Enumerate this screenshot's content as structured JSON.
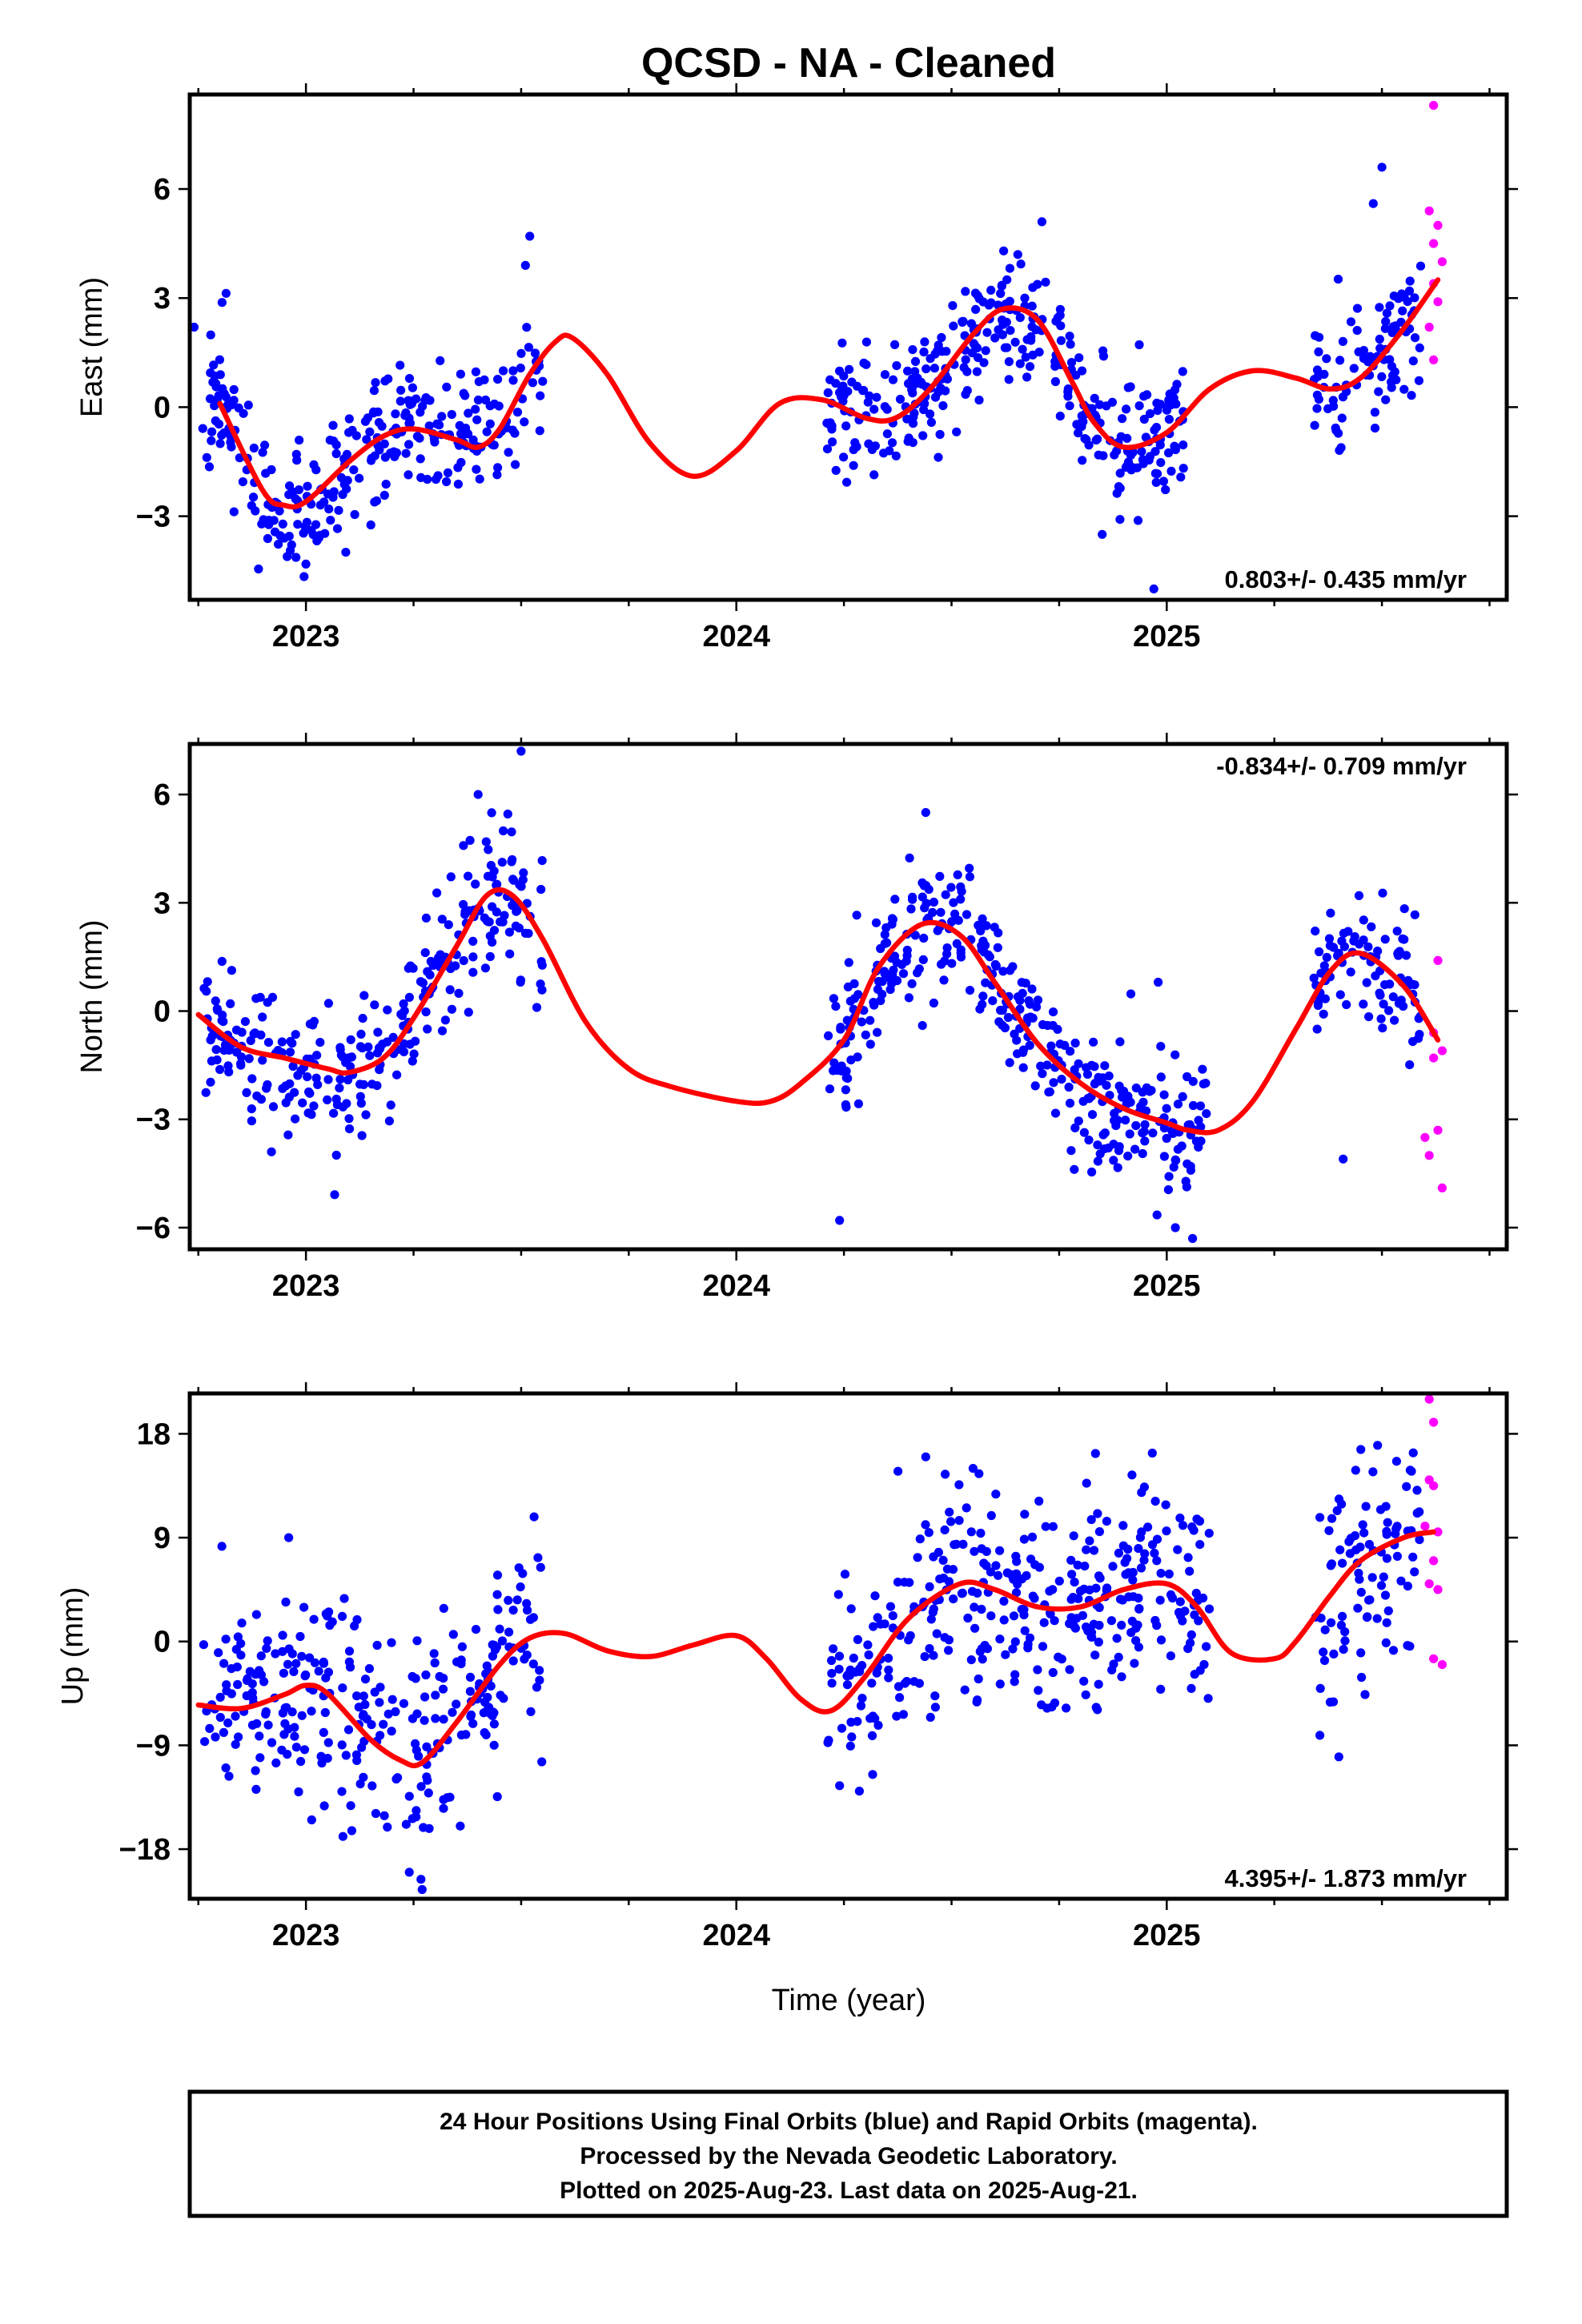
{
  "title": "QCSD  - NA - Cleaned",
  "xlabel": "Time (year)",
  "footer": [
    "24 Hour Positions Using Final Orbits (blue) and Rapid Orbits (magenta).",
    "Processed by the Nevada Geodetic Laboratory.",
    "Plotted on 2025-Aug-23. Last data on 2025-Aug-21."
  ],
  "colors": {
    "final": "#0000ff",
    "rapid": "#ff00ff",
    "model": "#ff0000",
    "frame": "#000000"
  },
  "chart_data": [
    {
      "type": "scatter",
      "ylabel": "East (mm)",
      "rate_text": "0.803+/- 0.435 mm/yr",
      "xlim": [
        2022.73,
        2025.79
      ],
      "ylim": [
        -5.3,
        8.6
      ],
      "x_ticks": [
        2023,
        2024,
        2025
      ],
      "y_ticks": [
        -3,
        0,
        3,
        6
      ],
      "gaps": [
        [
          2023.56,
          2024.2
        ],
        [
          2025.12,
          2025.33
        ]
      ],
      "model": {
        "x": [
          2022.8,
          2022.9,
          2022.95,
          2023.0,
          2023.1,
          2023.18,
          2023.25,
          2023.35,
          2023.4,
          2023.45,
          2023.52,
          2023.58,
          2023.62,
          2023.7,
          2023.8,
          2023.9,
          2024.0,
          2024.1,
          2024.2,
          2024.3,
          2024.37,
          2024.45,
          2024.55,
          2024.62,
          2024.7,
          2024.78,
          2024.83,
          2024.9,
          2025.0,
          2025.1,
          2025.2,
          2025.3,
          2025.38,
          2025.45,
          2025.54,
          2025.63
        ],
        "y": [
          0.1,
          -2.3,
          -2.7,
          -2.6,
          -1.5,
          -0.8,
          -0.6,
          -0.9,
          -1.1,
          -0.6,
          0.9,
          1.8,
          1.9,
          0.9,
          -1.0,
          -1.9,
          -1.2,
          0.1,
          0.2,
          -0.3,
          -0.3,
          0.5,
          2.0,
          2.7,
          2.4,
          0.7,
          -0.4,
          -1.1,
          -0.7,
          0.5,
          1.0,
          0.8,
          0.5,
          0.8,
          2.0,
          3.5
        ]
      },
      "final_series": {
        "segments": [
          {
            "x0": 2022.76,
            "x1": 2023.55,
            "n": 290
          },
          {
            "x0": 2024.21,
            "x1": 2025.04,
            "n": 330
          },
          {
            "x0": 2025.34,
            "x1": 2025.59,
            "n": 90
          }
        ],
        "spread": 0.95,
        "seed": 11,
        "samples": [
          {
            "x": 2022.74,
            "y": 2.2
          },
          {
            "x": 2023.03,
            "y": -3.6
          },
          {
            "x": 2023.52,
            "y": 4.7
          },
          {
            "x": 2023.51,
            "y": 3.9
          },
          {
            "x": 2024.71,
            "y": 5.1
          },
          {
            "x": 2024.97,
            "y": -5.0
          },
          {
            "x": 2025.5,
            "y": 6.6
          },
          {
            "x": 2025.48,
            "y": 5.6
          },
          {
            "x": 2024.85,
            "y": -3.5
          }
        ]
      },
      "rapid_series": {
        "points": [
          {
            "x": 2025.62,
            "y": 8.3
          },
          {
            "x": 2025.61,
            "y": 5.4
          },
          {
            "x": 2025.63,
            "y": 5.0
          },
          {
            "x": 2025.62,
            "y": 4.5
          },
          {
            "x": 2025.64,
            "y": 4.0
          },
          {
            "x": 2025.62,
            "y": 3.4
          },
          {
            "x": 2025.63,
            "y": 2.9
          },
          {
            "x": 2025.61,
            "y": 2.2
          },
          {
            "x": 2025.62,
            "y": 1.3
          }
        ]
      },
      "rate_position": "bottom-right"
    },
    {
      "type": "scatter",
      "ylabel": "North (mm)",
      "rate_text": "-0.834+/- 0.709 mm/yr",
      "xlim": [
        2022.73,
        2025.79
      ],
      "ylim": [
        -6.6,
        7.4
      ],
      "x_ticks": [
        2023,
        2024,
        2025
      ],
      "y_ticks": [
        -6,
        -3,
        0,
        3,
        6
      ],
      "gaps": [
        [
          2023.56,
          2024.2
        ],
        [
          2025.12,
          2025.33
        ]
      ],
      "model": {
        "x": [
          2022.75,
          2022.85,
          2022.95,
          2023.05,
          2023.1,
          2023.18,
          2023.25,
          2023.35,
          2023.42,
          2023.48,
          2023.55,
          2023.65,
          2023.75,
          2023.85,
          2024.0,
          2024.08,
          2024.15,
          2024.25,
          2024.33,
          2024.43,
          2024.52,
          2024.6,
          2024.7,
          2024.8,
          2024.9,
          2025.0,
          2025.05,
          2025.12,
          2025.2,
          2025.3,
          2025.38,
          2025.45,
          2025.55,
          2025.63
        ],
        "y": [
          -0.1,
          -1.0,
          -1.3,
          -1.6,
          -1.7,
          -1.3,
          -0.2,
          1.8,
          3.2,
          3.2,
          2.0,
          -0.3,
          -1.6,
          -2.1,
          -2.5,
          -2.5,
          -2.0,
          -0.8,
          1.2,
          2.4,
          2.1,
          0.8,
          -0.9,
          -2.0,
          -2.7,
          -3.1,
          -3.3,
          -3.3,
          -2.5,
          -0.5,
          1.1,
          1.6,
          0.7,
          -0.8
        ]
      },
      "final_series": {
        "segments": [
          {
            "x0": 2022.76,
            "x1": 2023.55,
            "n": 290
          },
          {
            "x0": 2024.21,
            "x1": 2025.1,
            "n": 350
          },
          {
            "x0": 2025.34,
            "x1": 2025.59,
            "n": 90
          }
        ],
        "spread": 0.95,
        "seed": 23,
        "samples": [
          {
            "x": 2023.5,
            "y": 7.2
          },
          {
            "x": 2023.4,
            "y": 6.0
          },
          {
            "x": 2024.44,
            "y": 5.5
          },
          {
            "x": 2024.24,
            "y": -5.8
          },
          {
            "x": 2025.06,
            "y": -6.3
          },
          {
            "x": 2025.02,
            "y": -6.0
          },
          {
            "x": 2025.41,
            "y": -4.1
          },
          {
            "x": 2024.98,
            "y": 0.8
          },
          {
            "x": 2022.92,
            "y": -3.9
          }
        ]
      },
      "rapid_series": {
        "points": [
          {
            "x": 2025.63,
            "y": 1.4
          },
          {
            "x": 2025.62,
            "y": -0.6
          },
          {
            "x": 2025.64,
            "y": -1.1
          },
          {
            "x": 2025.62,
            "y": -1.3
          },
          {
            "x": 2025.6,
            "y": -3.5
          },
          {
            "x": 2025.63,
            "y": -3.3
          },
          {
            "x": 2025.61,
            "y": -4.0
          },
          {
            "x": 2025.64,
            "y": -4.9
          }
        ]
      },
      "rate_position": "top-right"
    },
    {
      "type": "scatter",
      "ylabel": "Up (mm)",
      "rate_text": "4.395+/- 1.873 mm/yr",
      "xlim": [
        2022.73,
        2025.79
      ],
      "ylim": [
        -22.3,
        21.5
      ],
      "x_ticks": [
        2023,
        2024,
        2025
      ],
      "y_ticks": [
        -18,
        -9,
        0,
        9,
        18
      ],
      "gaps": [
        [
          2023.56,
          2024.2
        ],
        [
          2025.12,
          2025.33
        ]
      ],
      "model": {
        "x": [
          2022.75,
          2022.85,
          2022.95,
          2023.0,
          2023.05,
          2023.15,
          2023.22,
          2023.27,
          2023.35,
          2023.45,
          2023.52,
          2023.6,
          2023.7,
          2023.8,
          2023.9,
          2024.0,
          2024.07,
          2024.15,
          2024.22,
          2024.3,
          2024.4,
          2024.52,
          2024.6,
          2024.7,
          2024.8,
          2024.9,
          2025.0,
          2025.07,
          2025.15,
          2025.25,
          2025.3,
          2025.38,
          2025.45,
          2025.55,
          2025.62
        ],
        "y": [
          -5.5,
          -5.8,
          -4.6,
          -3.8,
          -4.5,
          -8.5,
          -10.3,
          -10.5,
          -7.0,
          -2.0,
          0.3,
          0.7,
          -0.8,
          -1.3,
          -0.3,
          0.5,
          -1.5,
          -5.0,
          -6.0,
          -3.0,
          2.0,
          5.0,
          4.5,
          3.0,
          3.0,
          4.5,
          5.0,
          3.0,
          -1.0,
          -1.5,
          0.0,
          4.0,
          7.0,
          9.0,
          9.5
        ]
      },
      "final_series": {
        "segments": [
          {
            "x0": 2022.76,
            "x1": 2023.55,
            "n": 290
          },
          {
            "x0": 2024.21,
            "x1": 2025.1,
            "n": 350
          },
          {
            "x0": 2025.34,
            "x1": 2025.59,
            "n": 90
          }
        ],
        "spread": 4.6,
        "seed": 37,
        "samples": [
          {
            "x": 2023.27,
            "y": -21.5
          },
          {
            "x": 2023.24,
            "y": -20.0
          },
          {
            "x": 2024.44,
            "y": 16.0
          },
          {
            "x": 2024.55,
            "y": 15.0
          },
          {
            "x": 2024.24,
            "y": -12.5
          },
          {
            "x": 2025.49,
            "y": 17.0
          },
          {
            "x": 2025.4,
            "y": -10.0
          },
          {
            "x": 2023.53,
            "y": 10.8
          },
          {
            "x": 2022.96,
            "y": 9.0
          }
        ]
      },
      "rapid_series": {
        "points": [
          {
            "x": 2025.61,
            "y": 21.0
          },
          {
            "x": 2025.62,
            "y": 19.0
          },
          {
            "x": 2025.61,
            "y": 14.0
          },
          {
            "x": 2025.62,
            "y": 13.5
          },
          {
            "x": 2025.6,
            "y": 10.0
          },
          {
            "x": 2025.63,
            "y": 9.5
          },
          {
            "x": 2025.62,
            "y": 7.0
          },
          {
            "x": 2025.61,
            "y": 5.0
          },
          {
            "x": 2025.63,
            "y": 4.5
          },
          {
            "x": 2025.62,
            "y": -1.5
          },
          {
            "x": 2025.64,
            "y": -2.0
          }
        ]
      },
      "rate_position": "bottom-right"
    }
  ]
}
